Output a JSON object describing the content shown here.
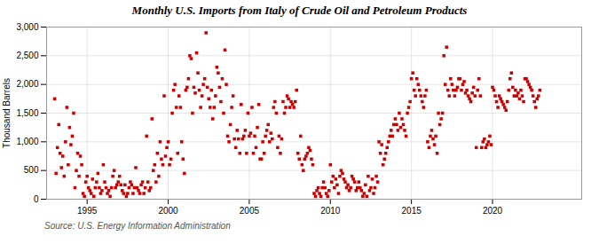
{
  "chart_data": {
    "type": "scatter",
    "title": "Monthly U.S. Imports from Italy of Crude Oil and Petroleum Products",
    "ylabel": "Thousand Barrels",
    "source": "Source: U.S. Energy Information Administration",
    "color": "#cc0000",
    "marker": "square",
    "grid": true,
    "xlim": [
      1992.5,
      2025.5
    ],
    "xticks": [
      1995,
      2000,
      2005,
      2010,
      2015,
      2020
    ],
    "ylim": [
      0,
      3000
    ],
    "yticks": [
      0,
      500,
      {
        "value": 1000,
        "label": "1,000"
      },
      {
        "value": 1500,
        "label": "1,500"
      },
      {
        "value": 2000,
        "label": "2,000"
      },
      {
        "value": 2500,
        "label": "2,500"
      },
      {
        "value": 3000,
        "label": "3,000"
      }
    ],
    "x": [
      1993,
      1993.0833333333333,
      1993.1666666666667,
      1993.25,
      1993.3333333333333,
      1993.4166666666667,
      1993.5,
      1993.5833333333333,
      1993.6666666666667,
      1993.75,
      1993.8333333333333,
      1993.9166666666667,
      1994,
      1994.0833333333333,
      1994.1666666666667,
      1994.25,
      1994.3333333333333,
      1994.4166666666667,
      1994.5,
      1994.5833333333333,
      1994.6666666666667,
      1994.75,
      1994.8333333333333,
      1994.9166666666667,
      1995,
      1995.0833333333333,
      1995.1666666666667,
      1995.25,
      1995.3333333333333,
      1995.4166666666667,
      1995.5,
      1995.5833333333333,
      1995.6666666666667,
      1995.75,
      1995.8333333333333,
      1995.9166666666667,
      1996,
      1996.0833333333333,
      1996.1666666666667,
      1996.25,
      1996.3333333333333,
      1996.4166666666667,
      1996.5,
      1996.5833333333333,
      1996.6666666666667,
      1996.75,
      1996.8333333333333,
      1996.9166666666667,
      1997,
      1997.0833333333333,
      1997.1666666666667,
      1997.25,
      1997.3333333333333,
      1997.4166666666667,
      1997.5,
      1997.5833333333333,
      1997.6666666666667,
      1997.75,
      1997.8333333333333,
      1997.9166666666667,
      1998,
      1998.0833333333333,
      1998.1666666666667,
      1998.25,
      1998.3333333333333,
      1998.4166666666667,
      1998.5,
      1998.5833333333333,
      1998.6666666666667,
      1998.75,
      1998.8333333333333,
      1998.9166666666667,
      1999,
      1999.0833333333333,
      1999.1666666666667,
      1999.25,
      1999.3333333333333,
      1999.4166666666667,
      1999.5,
      1999.5833333333333,
      1999.6666666666667,
      1999.75,
      1999.8333333333333,
      1999.9166666666667,
      2000,
      2000.0833333333333,
      2000.1666666666667,
      2000.25,
      2000.3333333333333,
      2000.4166666666667,
      2000.5,
      2000.5833333333333,
      2000.6666666666667,
      2000.75,
      2000.8333333333333,
      2000.9166666666667,
      2001,
      2001.0833333333333,
      2001.1666666666667,
      2001.25,
      2001.3333333333333,
      2001.4166666666667,
      2001.5,
      2001.5833333333333,
      2001.6666666666667,
      2001.75,
      2001.8333333333333,
      2001.9166666666667,
      2002,
      2002.0833333333333,
      2002.1666666666667,
      2002.25,
      2002.3333333333333,
      2002.4166666666667,
      2002.5,
      2002.5833333333333,
      2002.6666666666667,
      2002.75,
      2002.8333333333333,
      2002.9166666666667,
      2003,
      2003.0833333333333,
      2003.1666666666667,
      2003.25,
      2003.3333333333333,
      2003.4166666666667,
      2003.5,
      2003.5833333333333,
      2003.6666666666667,
      2003.75,
      2003.8333333333333,
      2003.9166666666667,
      2004,
      2004.0833333333333,
      2004.1666666666667,
      2004.25,
      2004.3333333333333,
      2004.4166666666667,
      2004.5,
      2004.5833333333333,
      2004.6666666666667,
      2004.75,
      2004.8333333333333,
      2004.9166666666667,
      2005,
      2005.0833333333333,
      2005.1666666666667,
      2005.25,
      2005.3333333333333,
      2005.4166666666667,
      2005.5,
      2005.5833333333333,
      2005.6666666666667,
      2005.75,
      2005.8333333333333,
      2005.9166666666667,
      2006,
      2006.0833333333333,
      2006.1666666666667,
      2006.25,
      2006.3333333333333,
      2006.4166666666667,
      2006.5,
      2006.5833333333333,
      2006.6666666666667,
      2006.75,
      2006.8333333333333,
      2006.9166666666667,
      2007,
      2007.0833333333333,
      2007.1666666666667,
      2007.25,
      2007.3333333333333,
      2007.4166666666667,
      2007.5,
      2007.5833333333333,
      2007.6666666666667,
      2007.75,
      2007.8333333333333,
      2007.9166666666667,
      2008,
      2008.0833333333333,
      2008.1666666666667,
      2008.25,
      2008.3333333333333,
      2008.4166666666667,
      2008.5,
      2008.5833333333333,
      2008.6666666666667,
      2008.75,
      2008.8333333333333,
      2008.9166666666667,
      2009,
      2009.0833333333333,
      2009.1666666666667,
      2009.25,
      2009.3333333333333,
      2009.4166666666667,
      2009.5,
      2009.5833333333333,
      2009.6666666666667,
      2009.75,
      2009.8333333333333,
      2009.9166666666667,
      2010,
      2010.0833333333333,
      2010.1666666666667,
      2010.25,
      2010.3333333333333,
      2010.4166666666667,
      2010.5,
      2010.5833333333333,
      2010.6666666666667,
      2010.75,
      2010.8333333333333,
      2010.9166666666667,
      2011,
      2011.0833333333333,
      2011.1666666666667,
      2011.25,
      2011.3333333333333,
      2011.4166666666667,
      2011.5,
      2011.5833333333333,
      2011.6666666666667,
      2011.75,
      2011.8333333333333,
      2011.9166666666667,
      2012,
      2012.0833333333333,
      2012.1666666666667,
      2012.25,
      2012.3333333333333,
      2012.4166666666667,
      2012.5,
      2012.5833333333333,
      2012.6666666666667,
      2012.75,
      2012.8333333333333,
      2012.9166666666667,
      2013,
      2013.0833333333333,
      2013.1666666666667,
      2013.25,
      2013.3333333333333,
      2013.4166666666667,
      2013.5,
      2013.5833333333333,
      2013.6666666666667,
      2013.75,
      2013.8333333333333,
      2013.9166666666667,
      2014,
      2014.0833333333333,
      2014.1666666666667,
      2014.25,
      2014.3333333333333,
      2014.4166666666667,
      2014.5,
      2014.5833333333333,
      2014.6666666666667,
      2014.75,
      2014.8333333333333,
      2014.9166666666667,
      2015,
      2015.0833333333333,
      2015.1666666666667,
      2015.25,
      2015.3333333333333,
      2015.4166666666667,
      2015.5,
      2015.5833333333333,
      2015.6666666666667,
      2015.75,
      2015.8333333333333,
      2015.9166666666667,
      2016,
      2016.0833333333333,
      2016.1666666666667,
      2016.25,
      2016.3333333333333,
      2016.4166666666667,
      2016.5,
      2016.5833333333333,
      2016.6666666666667,
      2016.75,
      2016.8333333333333,
      2016.9166666666667,
      2017,
      2017.0833333333333,
      2017.1666666666667,
      2017.25,
      2017.3333333333333,
      2017.4166666666667,
      2017.5,
      2017.5833333333333,
      2017.6666666666667,
      2017.75,
      2017.8333333333333,
      2017.9166666666667,
      2018,
      2018.0833333333333,
      2018.1666666666667,
      2018.25,
      2018.3333333333333,
      2018.4166666666667,
      2018.5,
      2018.5833333333333,
      2018.6666666666667,
      2018.75,
      2018.8333333333333,
      2018.9166666666667,
      2019,
      2019.0833333333333,
      2019.1666666666667,
      2019.25,
      2019.3333333333333,
      2019.4166666666667,
      2019.5,
      2019.5833333333333,
      2019.6666666666667,
      2019.75,
      2019.8333333333333,
      2019.9166666666667,
      2020,
      2020.0833333333333,
      2020.1666666666667,
      2020.25,
      2020.3333333333333,
      2020.4166666666667,
      2020.5,
      2020.5833333333333,
      2020.6666666666667,
      2020.75,
      2020.8333333333333,
      2020.9166666666667,
      2021,
      2021.0833333333333,
      2021.1666666666667,
      2021.25,
      2021.3333333333333,
      2021.4166666666667,
      2021.5,
      2021.5833333333333,
      2021.6666666666667,
      2021.75,
      2021.8333333333333,
      2021.9166666666667,
      2022,
      2022.0833333333333,
      2022.1666666666667,
      2022.25,
      2022.3333333333333,
      2022.4166666666667,
      2022.5,
      2022.5833333333333,
      2022.6666666666667,
      2022.75,
      2022.8333333333333,
      2022.9166666666667
    ],
    "values": [
      1750,
      450,
      900,
      1300,
      800,
      550,
      750,
      400,
      1000,
      1600,
      600,
      1250,
      950,
      1100,
      1500,
      200,
      500,
      800,
      400,
      750,
      600,
      100,
      50,
      300,
      400,
      200,
      150,
      100,
      350,
      50,
      200,
      300,
      450,
      200,
      100,
      150,
      600,
      300,
      200,
      100,
      150,
      50,
      200,
      400,
      500,
      200,
      250,
      300,
      400,
      250,
      150,
      100,
      250,
      50,
      100,
      200,
      300,
      250,
      100,
      200,
      550,
      200,
      150,
      100,
      250,
      300,
      100,
      200,
      1100,
      300,
      150,
      200,
      1400,
      500,
      600,
      300,
      800,
      400,
      1000,
      700,
      600,
      1800,
      750,
      900,
      1000,
      600,
      700,
      1500,
      1900,
      2000,
      1600,
      800,
      1800,
      1600,
      1000,
      700,
      450,
      1900,
      1950,
      2100,
      2500,
      2450,
      1500,
      1950,
      1850,
      2550,
      2200,
      1900,
      1600,
      1800,
      2000,
      2100,
      2900,
      1950,
      1750,
      1600,
      1900,
      1400,
      1600,
      1800,
      2300,
      2200,
      1950,
      1700,
      2100,
      1500,
      2600,
      2000,
      1100,
      1000,
      1300,
      1600,
      1800,
      1050,
      900,
      1200,
      1050,
      800,
      1650,
      1050,
      1100,
      1200,
      800,
      1500,
      1100,
      1150,
      1600,
      800,
      1100,
      900,
      1250,
      1650,
      700,
      700,
      1000,
      800,
      1100,
      1200,
      1300,
      1000,
      1150,
      1050,
      1600,
      1700,
      1500,
      900,
      1100,
      800,
      1050,
      1700,
      1500,
      1600,
      1800,
      1750,
      1600,
      1700,
      1650,
      1600,
      1700,
      1900,
      800,
      700,
      1100,
      600,
      500,
      700,
      750,
      800,
      900,
      850,
      700,
      600,
      100,
      50,
      150,
      200,
      100,
      50,
      200,
      300,
      200,
      100,
      50,
      150,
      600,
      300,
      400,
      200,
      350,
      250,
      100,
      400,
      500,
      450,
      350,
      300,
      200,
      250,
      150,
      200,
      400,
      350,
      300,
      150,
      200,
      300,
      200,
      150,
      50,
      100,
      250,
      50,
      400,
      150,
      200,
      350,
      100,
      200,
      400,
      300,
      1000,
      800,
      950,
      600,
      700,
      800,
      900,
      1000,
      1100,
      1200,
      1100,
      1300,
      1400,
      1300,
      1200,
      1500,
      1250,
      1400,
      1300,
      1200,
      1100,
      1500,
      1600,
      1700,
      2100,
      2200,
      1900,
      1800,
      2100,
      2000,
      1900,
      1800,
      1700,
      1600,
      1800,
      1900,
      1000,
      900,
      1100,
      1200,
      1050,
      950,
      1100,
      800,
      1500,
      1300,
      1400,
      1500,
      2500,
      2000,
      2650,
      1900,
      1800,
      2100,
      2000,
      1900,
      1800,
      1900,
      1950,
      2100,
      2100,
      1900,
      2000,
      2050,
      1850,
      1900,
      1800,
      1750,
      1700,
      1850,
      1950,
      1800,
      900,
      1900,
      2100,
      1800,
      900,
      1000,
      1050,
      900,
      950,
      1000,
      1100,
      950,
      1950,
      1900,
      1800,
      1700,
      1600,
      1800,
      1750,
      1700,
      1650,
      1600,
      1550,
      1700,
      1900,
      2100,
      2200,
      1950,
      1800,
      1900,
      1800,
      1850,
      1750,
      1900,
      1800,
      1700,
      2100,
      2100,
      2050,
      2000,
      1950,
      1900,
      1800,
      1700,
      1600,
      1750,
      1800,
      1900
    ]
  }
}
